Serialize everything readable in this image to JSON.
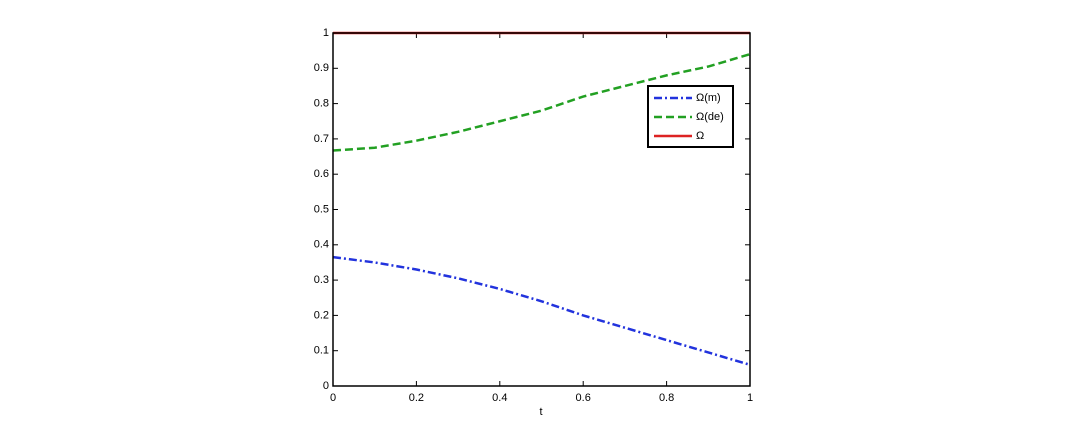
{
  "chart_data": {
    "type": "line",
    "x_label": "t",
    "x": [
      0,
      0.1,
      0.2,
      0.3,
      0.4,
      0.5,
      0.6,
      0.7,
      0.8,
      0.9,
      1
    ],
    "series": [
      {
        "name": "Ω(m)",
        "color": "#2233dd",
        "style": "dashdot",
        "values": [
          0.365,
          0.35,
          0.33,
          0.305,
          0.275,
          0.24,
          0.2,
          0.165,
          0.13,
          0.095,
          0.06
        ]
      },
      {
        "name": "Ω(de)",
        "color": "#22a022",
        "style": "dashed",
        "values": [
          0.667,
          0.675,
          0.695,
          0.72,
          0.75,
          0.78,
          0.82,
          0.85,
          0.88,
          0.905,
          0.94
        ]
      },
      {
        "name": "Ω",
        "color": "#dd2222",
        "style": "solid",
        "values": [
          1,
          1,
          1,
          1,
          1,
          1,
          1,
          1,
          1,
          1,
          1
        ]
      }
    ],
    "xlim": [
      0,
      1
    ],
    "xticks": [
      0,
      0.2,
      0.4,
      0.6,
      0.8,
      1
    ],
    "ylim": [
      0,
      1
    ],
    "yticks": [
      0,
      0.1,
      0.2,
      0.3,
      0.4,
      0.5,
      0.6,
      0.7,
      0.8,
      0.9,
      1
    ],
    "legend": "upper-right"
  }
}
